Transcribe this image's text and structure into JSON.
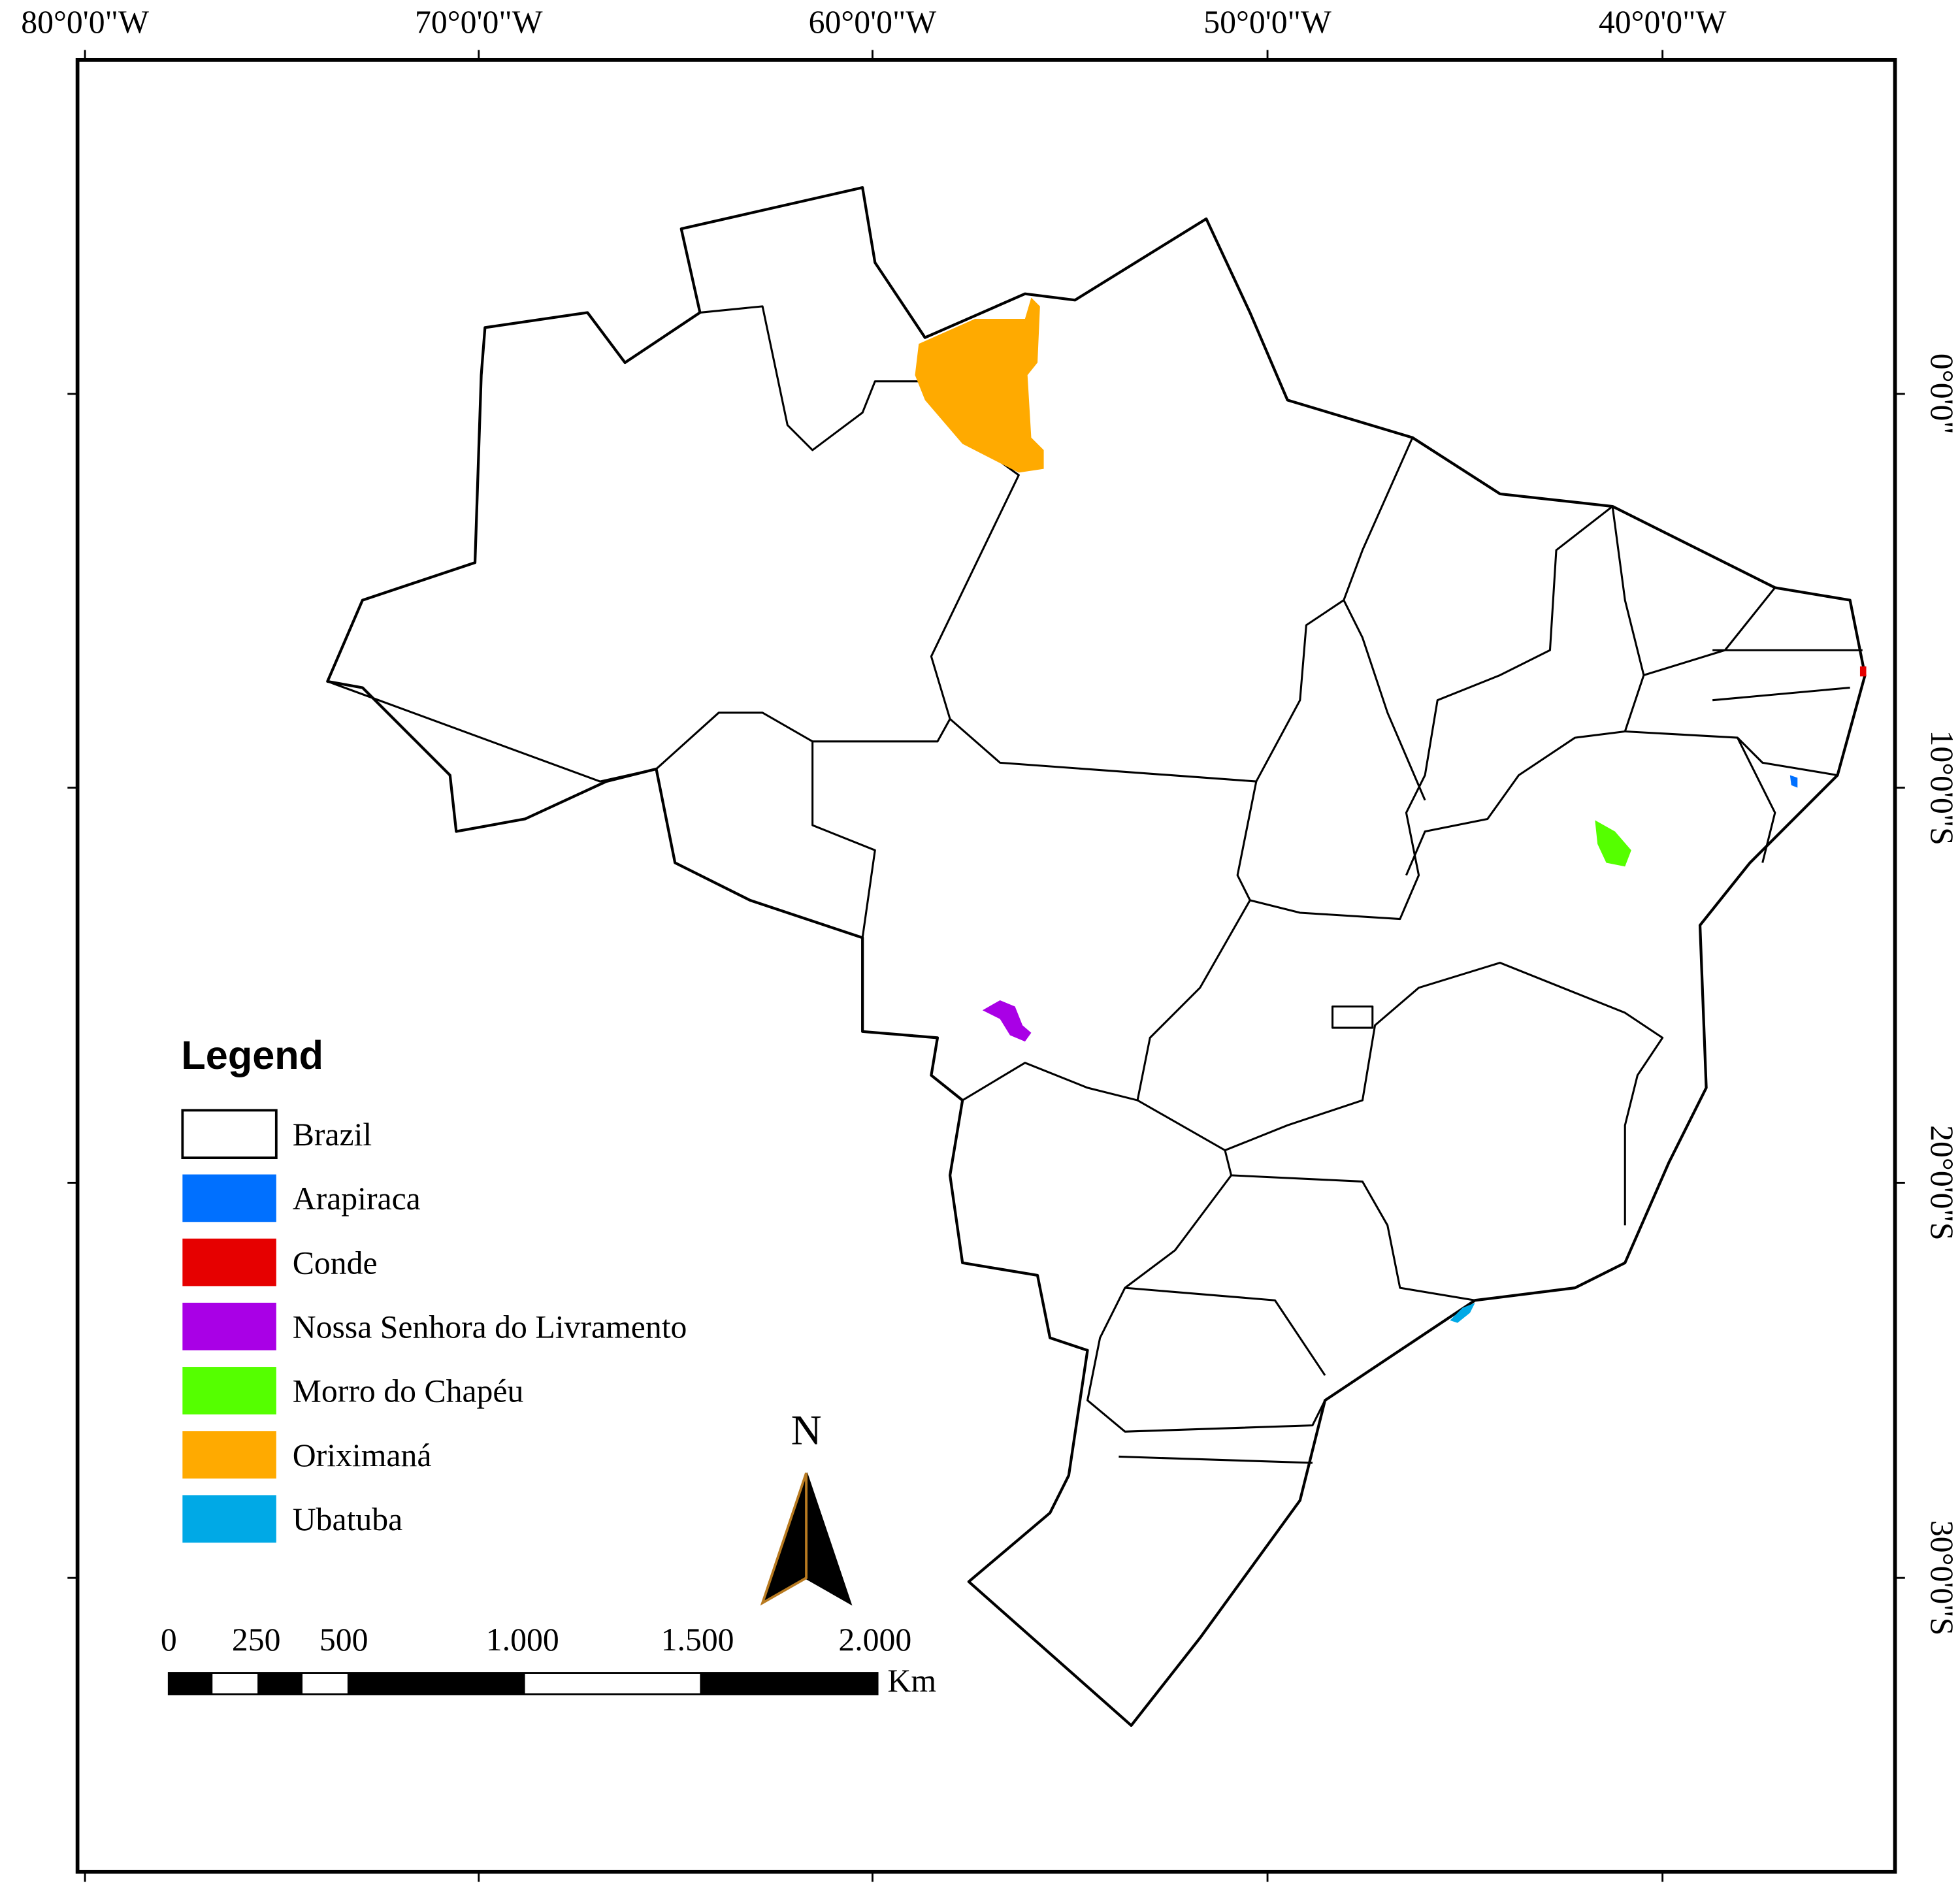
{
  "lon_labels": [
    "80°0'0\"W",
    "70°0'0\"W",
    "60°0'0\"W",
    "50°0'0\"W",
    "40°0'0\"W"
  ],
  "lat_labels": [
    "0°0'0\"",
    "10°0'0\"S",
    "20°0'0\"S",
    "30°0'0\"S"
  ],
  "legend": {
    "title": "Legend",
    "items": [
      {
        "name": "Brazil",
        "color": "#ffffff"
      },
      {
        "name": "Arapiraca",
        "color": "#0070ff"
      },
      {
        "name": "Conde",
        "color": "#e60000"
      },
      {
        "name": "Nossa Senhora do Livramento",
        "color": "#a900e6"
      },
      {
        "name": "Morro do Chapéu",
        "color": "#55ff00"
      },
      {
        "name": "Oriximaná",
        "color": "#ffaa00"
      },
      {
        "name": "Ubatuba",
        "color": "#00a9e6"
      }
    ]
  },
  "scale_bar": {
    "labels": [
      "0",
      "250",
      "500",
      "1.000",
      "1.500",
      "2.000"
    ],
    "unit": "Km"
  },
  "north_arrow": "N"
}
